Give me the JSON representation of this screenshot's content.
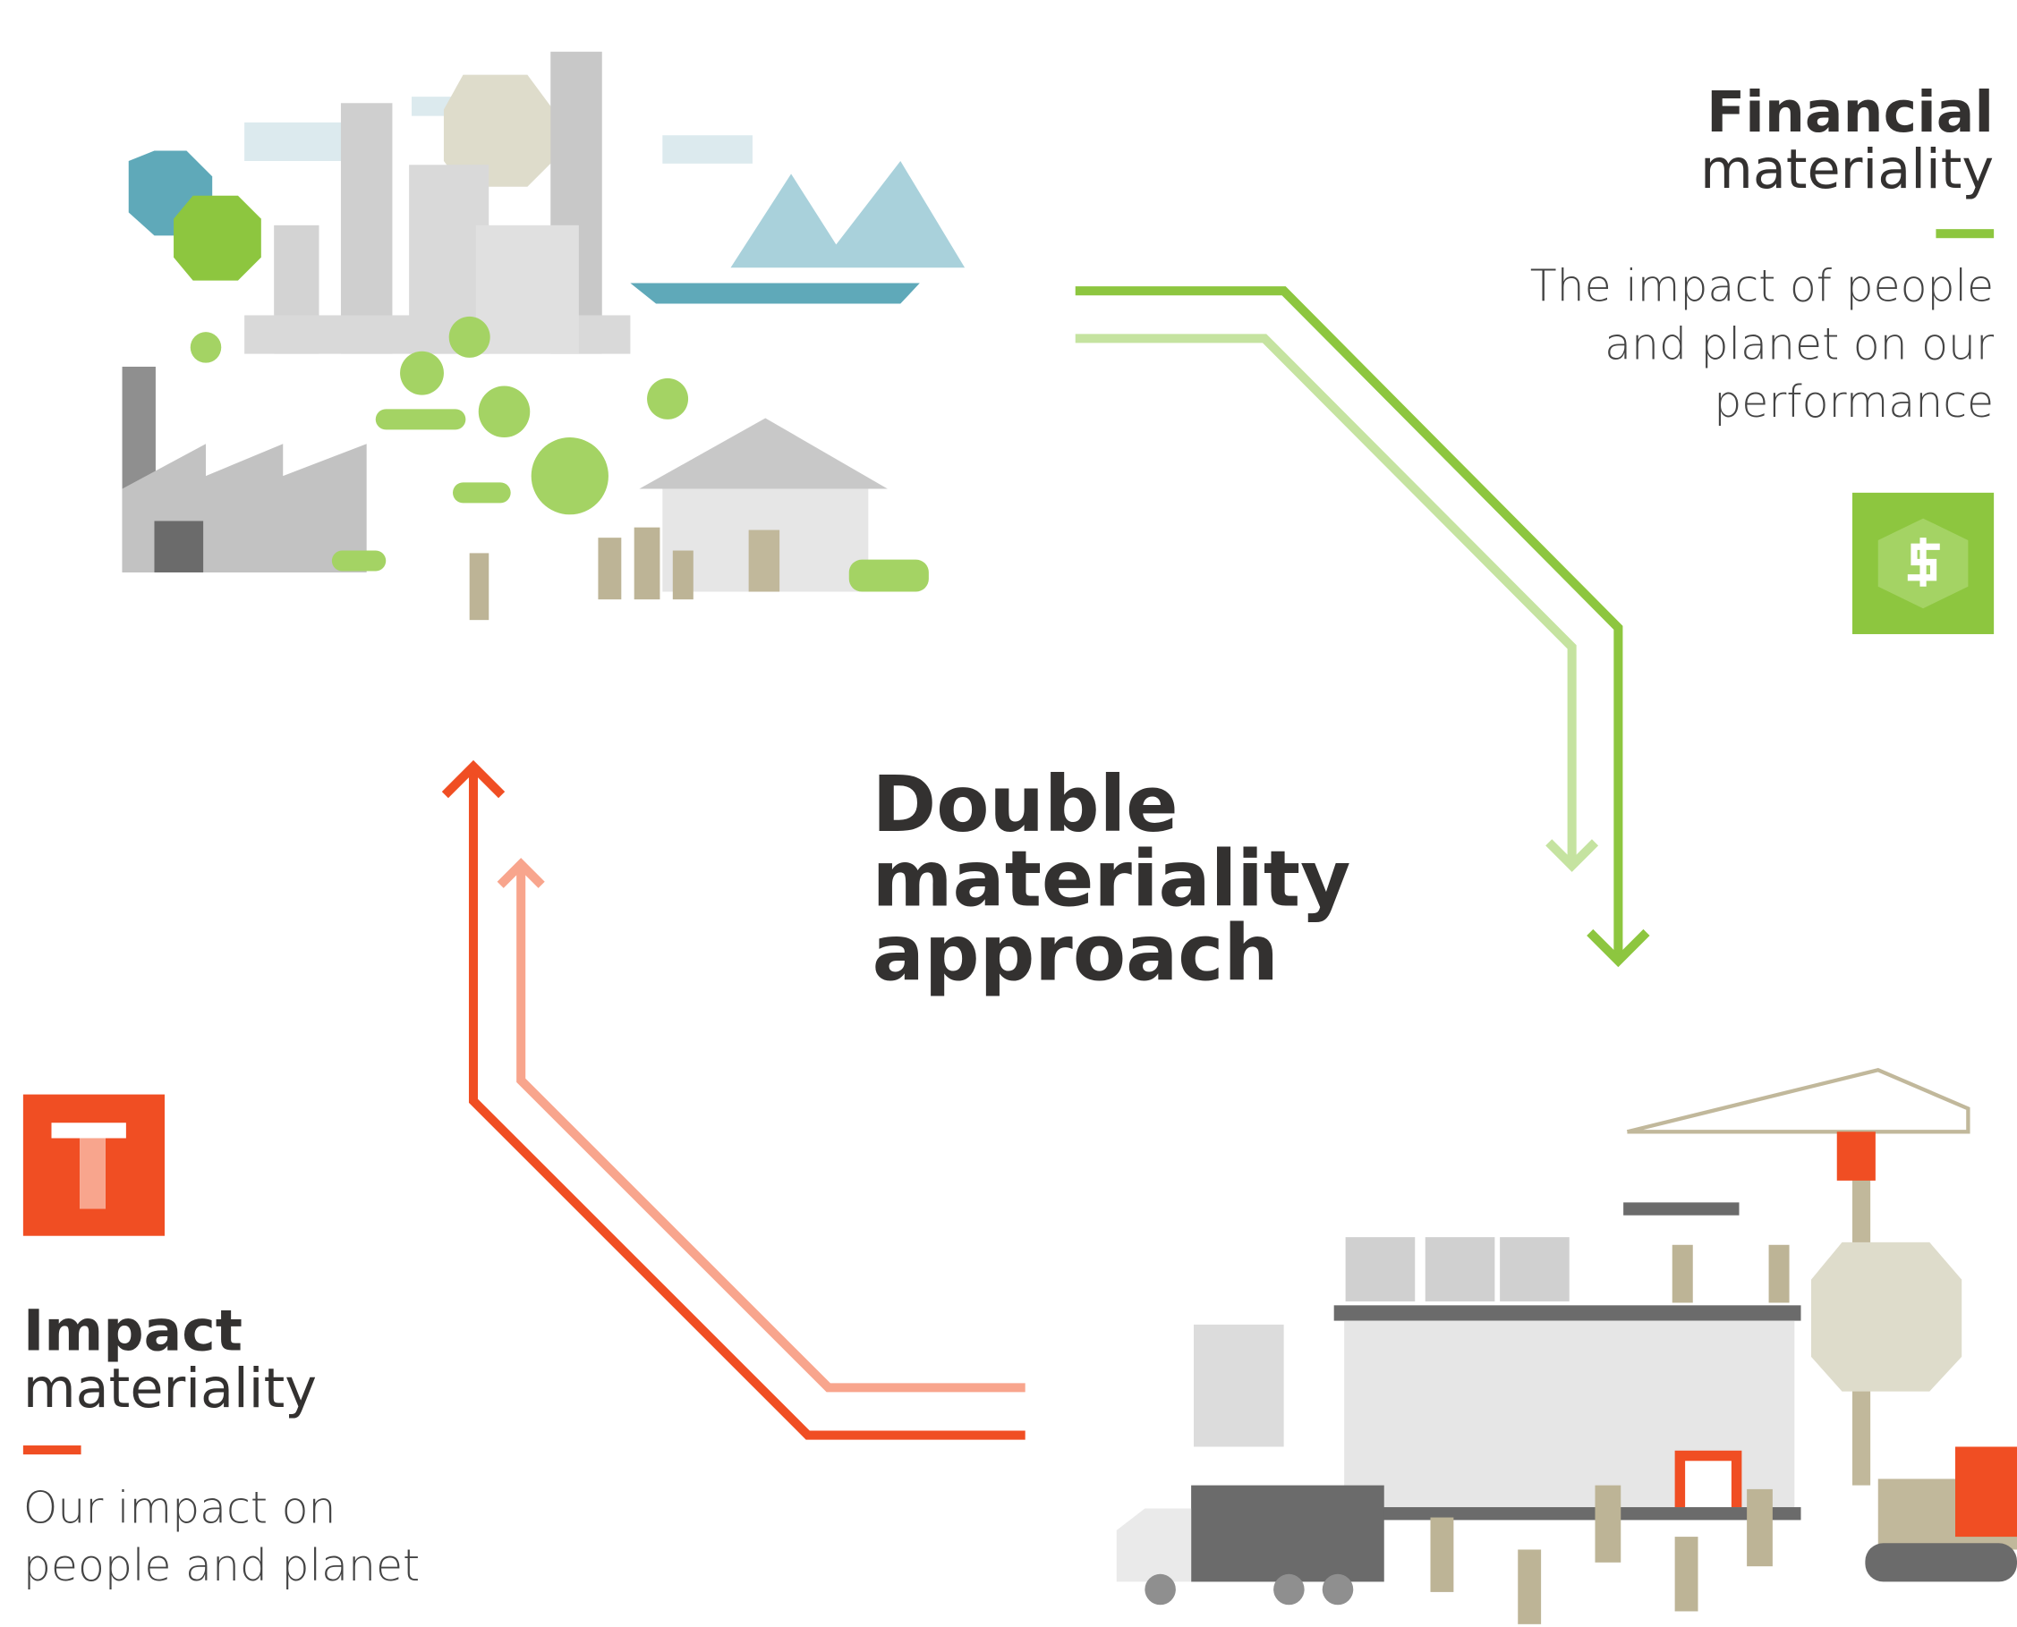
{
  "financial": {
    "title_bold": "Financial",
    "title": "materiality",
    "description_lines": [
      "The impact of people",
      "and planet on our",
      "performance"
    ]
  },
  "center": {
    "title_lines": [
      "Double",
      "materiality",
      "approach"
    ]
  },
  "impact": {
    "title_bold": "Impact",
    "title": "materiality",
    "description_lines": [
      "Our impact on",
      "people and planet"
    ]
  }
}
